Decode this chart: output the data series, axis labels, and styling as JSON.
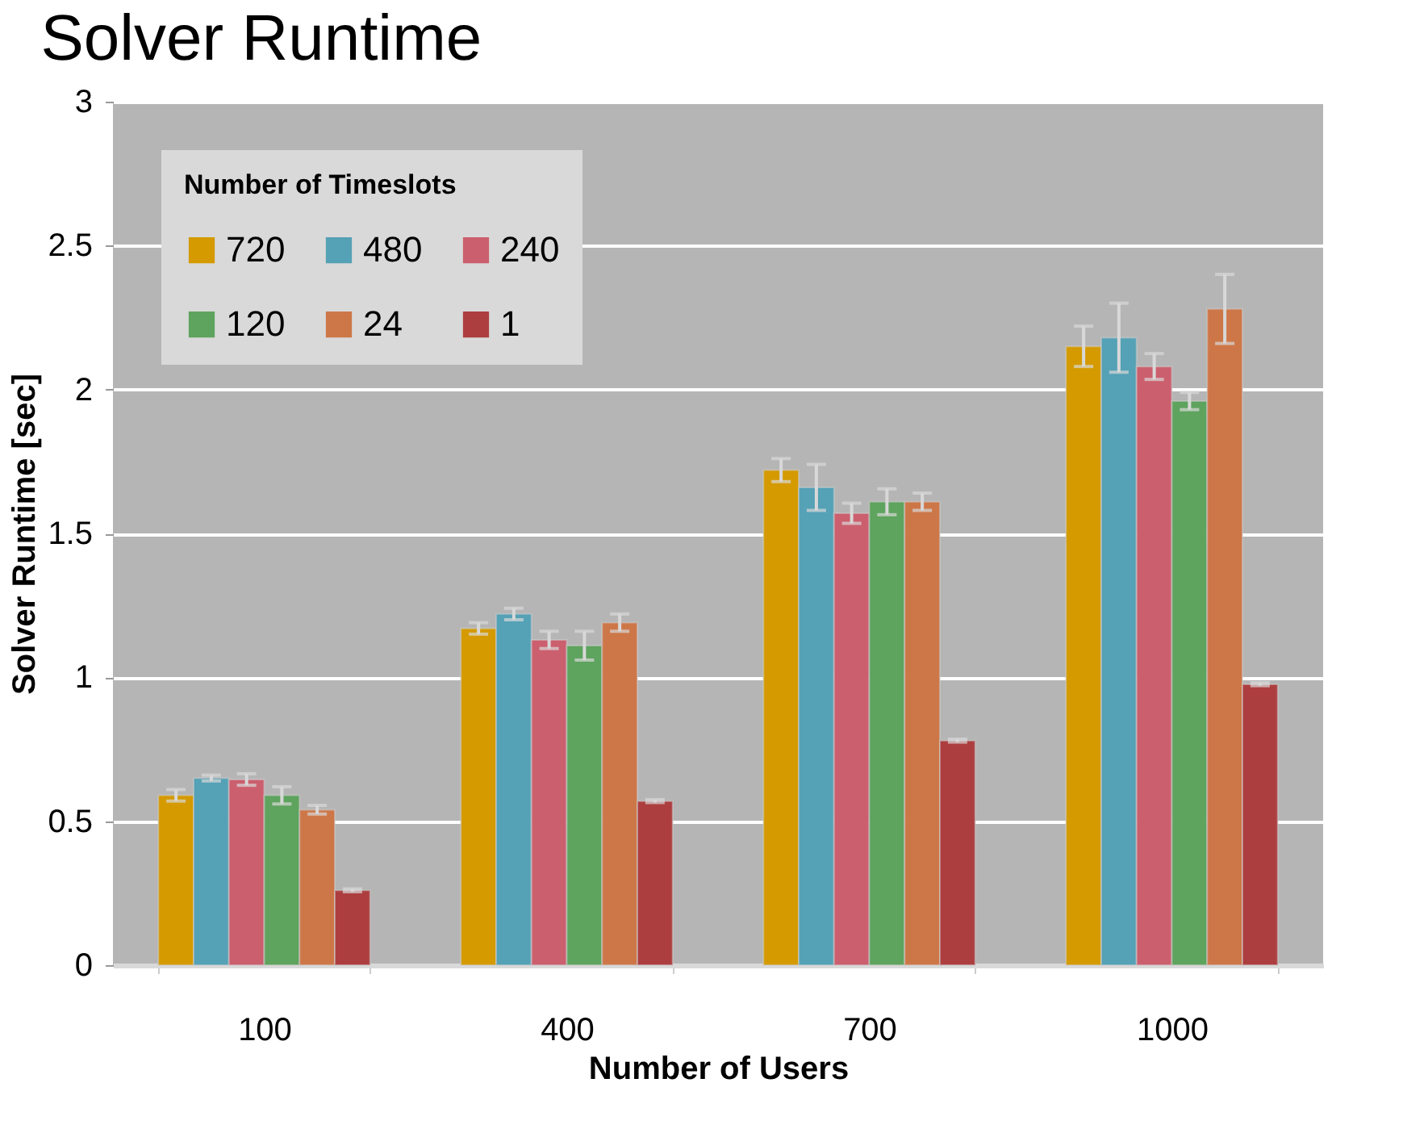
{
  "chart_data": {
    "type": "bar",
    "title": "Solver Runtime",
    "xlabel": "Number of Users",
    "ylabel": "Solver Runtime [sec]",
    "legend_title": "Number of Timeslots",
    "categories": [
      "100",
      "400",
      "700",
      "1000"
    ],
    "series": [
      {
        "name": "720",
        "color": "#d49a00",
        "values": [
          0.59,
          1.17,
          1.72,
          2.15
        ],
        "errors": [
          0.02,
          0.02,
          0.04,
          0.07
        ]
      },
      {
        "name": "480",
        "color": "#55a1b6",
        "values": [
          0.65,
          1.22,
          1.66,
          2.18
        ],
        "errors": [
          0.01,
          0.02,
          0.08,
          0.12
        ]
      },
      {
        "name": "240",
        "color": "#cb5f6e",
        "values": [
          0.645,
          1.13,
          1.57,
          2.08
        ],
        "errors": [
          0.02,
          0.03,
          0.035,
          0.045
        ]
      },
      {
        "name": "120",
        "color": "#5ea35e",
        "values": [
          0.59,
          1.11,
          1.61,
          1.96
        ],
        "errors": [
          0.03,
          0.05,
          0.045,
          0.03
        ]
      },
      {
        "name": "24",
        "color": "#cd7748",
        "values": [
          0.54,
          1.19,
          1.61,
          2.28
        ],
        "errors": [
          0.015,
          0.03,
          0.03,
          0.12
        ]
      },
      {
        "name": "1",
        "color": "#ad3e3f",
        "values": [
          0.26,
          0.57,
          0.78,
          0.976
        ],
        "errors": [
          0.005,
          0.005,
          0.005,
          0.005
        ]
      }
    ],
    "ylim": [
      0,
      3
    ],
    "yticks": [
      0,
      0.5,
      1,
      1.5,
      2,
      2.5,
      3
    ],
    "grid": "y",
    "legend": "top left"
  }
}
